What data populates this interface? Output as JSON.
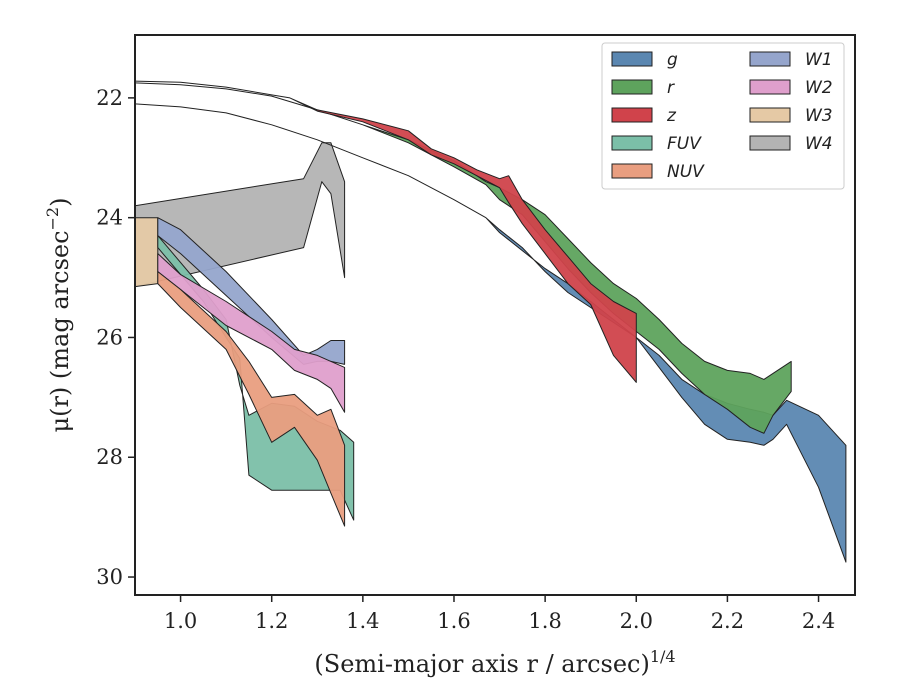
{
  "chart_data": {
    "type": "area",
    "xlabel": "(Semi-major axis r / arcsec)",
    "xlabel_exponent": "1/4",
    "ylabel": "μ(r) (mag arcsec",
    "ylabel_exponent": "−2",
    "ylabel_tail": ")",
    "xlim": [
      0.9,
      2.48
    ],
    "ylim": [
      30.3,
      20.95
    ],
    "y_inverted": true,
    "xticks": [
      1.0,
      1.2,
      1.4,
      1.6,
      1.8,
      2.0,
      2.2,
      2.4
    ],
    "xtick_labels": [
      "1.0",
      "1.2",
      "1.4",
      "1.6",
      "1.8",
      "2.0",
      "2.2",
      "2.4"
    ],
    "yticks": [
      22,
      24,
      26,
      28,
      30
    ],
    "ytick_labels": [
      "22",
      "24",
      "26",
      "28",
      "30"
    ],
    "grid": false,
    "legend_position": "top-right",
    "legend_columns": 2,
    "series": [
      {
        "name": "W4",
        "color": "#b3b3b3",
        "x": [
          0.9,
          1.27,
          1.31,
          1.33,
          1.36
        ],
        "y_bright": [
          23.8,
          23.35,
          22.75,
          22.75,
          23.4
        ],
        "y_faint": [
          25.15,
          24.5,
          23.4,
          23.6,
          25.0
        ]
      },
      {
        "name": "W3",
        "color": "#e5c9a5",
        "x": [
          0.9,
          0.95
        ],
        "y_bright": [
          24.0,
          24.0
        ],
        "y_faint": [
          25.15,
          25.1
        ]
      },
      {
        "name": "FUV",
        "color": "#7bbfa8",
        "x": [
          0.95,
          1.05,
          1.1,
          1.13,
          1.15,
          1.2,
          1.25,
          1.3,
          1.35,
          1.38
        ],
        "y_bright": [
          24.3,
          25.2,
          25.7,
          26.8,
          27.3,
          27.1,
          27.15,
          27.4,
          27.55,
          27.75
        ],
        "y_faint": [
          24.5,
          25.4,
          26.0,
          26.35,
          28.3,
          28.55,
          28.55,
          28.55,
          28.55,
          29.05
        ]
      },
      {
        "name": "W1",
        "color": "#95a5cc",
        "x": [
          0.95,
          1.0,
          1.1,
          1.2,
          1.27,
          1.3,
          1.33,
          1.36
        ],
        "y_bright": [
          24.0,
          24.2,
          24.9,
          25.7,
          26.3,
          26.2,
          26.05,
          26.05
        ],
        "y_faint": [
          24.3,
          24.6,
          25.3,
          26.0,
          26.45,
          26.4,
          26.4,
          26.45
        ]
      },
      {
        "name": "W2",
        "color": "#df9fcc",
        "x": [
          0.95,
          1.0,
          1.1,
          1.2,
          1.25,
          1.3,
          1.33,
          1.36
        ],
        "y_bright": [
          24.6,
          24.95,
          25.4,
          25.9,
          26.2,
          26.3,
          26.4,
          26.5
        ],
        "y_faint": [
          24.9,
          25.2,
          25.8,
          26.2,
          26.55,
          26.7,
          26.85,
          27.25
        ]
      },
      {
        "name": "NUV",
        "color": "#e99e80",
        "x": [
          0.95,
          1.0,
          1.1,
          1.15,
          1.2,
          1.25,
          1.3,
          1.33,
          1.36
        ],
        "y_bright": [
          24.9,
          25.2,
          25.9,
          26.4,
          27.0,
          26.95,
          27.3,
          27.2,
          27.8
        ],
        "y_faint": [
          25.1,
          25.5,
          26.2,
          26.95,
          27.75,
          27.5,
          28.05,
          28.6,
          29.15
        ]
      },
      {
        "name": "g",
        "color": "#5b87b1",
        "x": [
          0.9,
          1.0,
          1.1,
          1.2,
          1.3,
          1.4,
          1.5,
          1.6,
          1.67,
          1.7,
          1.75,
          1.8,
          1.85,
          1.9,
          1.95,
          2.0,
          2.05,
          2.1,
          2.15,
          2.2,
          2.25,
          2.28,
          2.3,
          2.33,
          2.4,
          2.46
        ],
        "y_bright": [
          22.1,
          22.15,
          22.25,
          22.45,
          22.7,
          23.0,
          23.3,
          23.7,
          24.0,
          24.2,
          24.5,
          24.9,
          25.25,
          25.5,
          25.75,
          26.0,
          26.3,
          26.7,
          26.95,
          27.1,
          27.2,
          27.25,
          27.3,
          27.05,
          27.3,
          27.8
        ],
        "y_faint": [
          22.1,
          22.15,
          22.25,
          22.45,
          22.7,
          23.0,
          23.3,
          23.7,
          24.0,
          24.25,
          24.55,
          24.85,
          25.1,
          25.4,
          25.7,
          26.0,
          26.5,
          27.0,
          27.45,
          27.7,
          27.75,
          27.8,
          27.7,
          27.45,
          28.5,
          29.75
        ]
      },
      {
        "name": "r",
        "color": "#5ea35d",
        "x": [
          0.9,
          1.0,
          1.1,
          1.2,
          1.3,
          1.4,
          1.5,
          1.6,
          1.67,
          1.7,
          1.75,
          1.8,
          1.85,
          1.9,
          1.95,
          2.0,
          2.05,
          2.1,
          2.15,
          2.2,
          2.25,
          2.28,
          2.3,
          2.34
        ],
        "y_bright": [
          21.75,
          21.78,
          21.85,
          21.97,
          22.2,
          22.45,
          22.7,
          23.05,
          23.4,
          23.5,
          23.7,
          23.95,
          24.35,
          24.75,
          25.1,
          25.35,
          25.7,
          26.1,
          26.4,
          26.55,
          26.6,
          26.7,
          26.6,
          26.4
        ],
        "y_faint": [
          21.75,
          21.78,
          21.85,
          21.97,
          22.2,
          22.45,
          22.75,
          23.15,
          23.45,
          23.7,
          23.95,
          24.4,
          24.85,
          25.25,
          25.6,
          25.9,
          26.2,
          26.6,
          26.95,
          27.2,
          27.5,
          27.6,
          27.3,
          26.9
        ]
      },
      {
        "name": "z",
        "color": "#d0434b",
        "x": [
          0.9,
          1.0,
          1.1,
          1.2,
          1.24,
          1.3,
          1.4,
          1.5,
          1.55,
          1.6,
          1.65,
          1.7,
          1.72,
          1.75,
          1.8,
          1.85,
          1.9,
          1.95,
          2.0
        ],
        "y_bright": [
          21.72,
          21.74,
          21.82,
          21.95,
          22.0,
          22.2,
          22.35,
          22.55,
          22.85,
          23.0,
          23.2,
          23.35,
          23.3,
          23.7,
          24.2,
          24.65,
          25.1,
          25.4,
          25.6
        ],
        "y_faint": [
          21.72,
          21.74,
          21.82,
          21.95,
          22.0,
          22.22,
          22.4,
          22.7,
          22.95,
          23.1,
          23.3,
          23.5,
          23.75,
          24.1,
          24.6,
          25.1,
          25.45,
          26.3,
          26.75
        ]
      }
    ],
    "legend": [
      {
        "label": "g",
        "color": "#5b87b1"
      },
      {
        "label": "r",
        "color": "#5ea35d"
      },
      {
        "label": "z",
        "color": "#d0434b"
      },
      {
        "label": "FUV",
        "color": "#7bbfa8"
      },
      {
        "label": "NUV",
        "color": "#e99e80"
      },
      {
        "label": "W1",
        "color": "#95a5cc"
      },
      {
        "label": "W2",
        "color": "#df9fcc"
      },
      {
        "label": "W3",
        "color": "#e5c9a5"
      },
      {
        "label": "W4",
        "color": "#b3b3b3"
      }
    ]
  }
}
